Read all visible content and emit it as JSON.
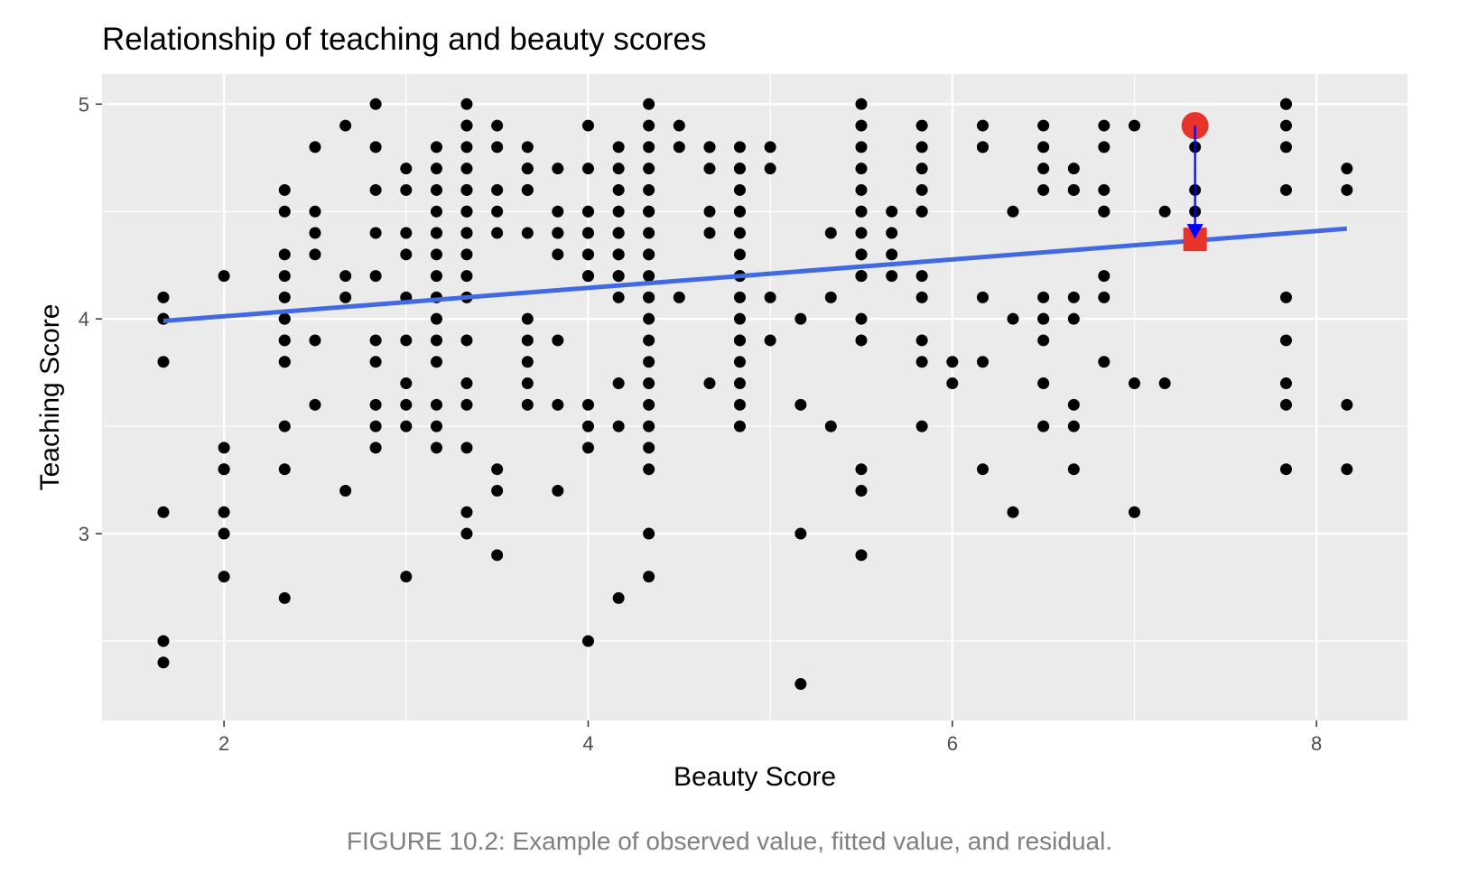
{
  "figure": {
    "caption": "FIGURE 10.2: Example of observed value, fitted value, and residual."
  },
  "chart_data": {
    "type": "scatter",
    "title": "Relationship of teaching and beauty scores",
    "xlabel": "Beauty Score",
    "ylabel": "Teaching Score",
    "xlim": [
      1.33,
      8.5
    ],
    "ylim": [
      2.13,
      5.14
    ],
    "x_ticks": [
      2,
      4,
      6,
      8
    ],
    "x_tick_labels": [
      "2",
      "4",
      "6",
      "8"
    ],
    "y_ticks": [
      3,
      4,
      5
    ],
    "y_tick_labels": [
      "3",
      "4",
      "5"
    ],
    "grid": true,
    "legend": "none",
    "colors": {
      "panel_background": "#ebebeb",
      "grid": "#ffffff",
      "points": "#000000",
      "fit_line": "#4169e1",
      "observed": "#e8332a",
      "fitted": "#e8332a",
      "residual_arrow": "#0000ff"
    },
    "regression_line": {
      "x": [
        1.667,
        8.167
      ],
      "y": [
        3.99,
        4.42
      ]
    },
    "highlight": {
      "x": 7.333,
      "observed_y": 4.9,
      "fitted_y": 4.37
    },
    "points": {
      "x": [
        1.667,
        1.667,
        1.667,
        1.667,
        1.667,
        1.667,
        1.667,
        2.0,
        2.0,
        2.0,
        2.0,
        2.0,
        2.0,
        2.0,
        2.333,
        2.333,
        2.333,
        2.333,
        2.333,
        2.333,
        2.333,
        2.333,
        2.333,
        2.333,
        2.333,
        2.333,
        2.333,
        2.333,
        2.5,
        2.5,
        2.5,
        2.5,
        2.5,
        2.5,
        2.667,
        2.667,
        2.667,
        2.667,
        2.833,
        2.833,
        2.833,
        2.833,
        2.833,
        2.833,
        2.833,
        2.833,
        2.833,
        2.833,
        3.0,
        3.0,
        3.0,
        3.0,
        3.0,
        3.0,
        3.0,
        3.0,
        3.0,
        3.0,
        3.167,
        3.167,
        3.167,
        3.167,
        3.167,
        3.167,
        3.167,
        3.167,
        3.167,
        3.167,
        3.167,
        3.167,
        3.167,
        3.167,
        3.167,
        3.333,
        3.333,
        3.333,
        3.333,
        3.333,
        3.333,
        3.333,
        3.333,
        3.333,
        3.333,
        3.333,
        3.333,
        3.333,
        3.333,
        3.333,
        3.333,
        3.333,
        3.333,
        3.333,
        3.333,
        3.5,
        3.5,
        3.5,
        3.5,
        3.5,
        3.5,
        3.5,
        3.5,
        3.667,
        3.667,
        3.667,
        3.667,
        3.667,
        3.667,
        3.667,
        3.667,
        3.667,
        3.667,
        3.667,
        3.833,
        3.833,
        3.833,
        3.833,
        3.833,
        3.833,
        3.833,
        3.833,
        4.0,
        4.0,
        4.0,
        4.0,
        4.0,
        4.0,
        4.0,
        4.0,
        4.0,
        4.0,
        4.0,
        4.0,
        4.0,
        4.0,
        4.167,
        4.167,
        4.167,
        4.167,
        4.167,
        4.167,
        4.167,
        4.167,
        4.167,
        4.167,
        4.167,
        4.167,
        4.167,
        4.167,
        4.333,
        4.333,
        4.333,
        4.333,
        4.333,
        4.333,
        4.333,
        4.333,
        4.333,
        4.333,
        4.333,
        4.333,
        4.333,
        4.333,
        4.333,
        4.333,
        4.333,
        4.333,
        4.333,
        4.333,
        4.333,
        4.333,
        4.333,
        4.5,
        4.5,
        4.5,
        4.667,
        4.667,
        4.667,
        4.667,
        4.667,
        4.667,
        4.833,
        4.833,
        4.833,
        4.833,
        4.833,
        4.833,
        4.833,
        4.833,
        4.833,
        4.833,
        4.833,
        4.833,
        4.833,
        4.833,
        4.833,
        4.833,
        4.833,
        4.833,
        5.0,
        5.0,
        5.0,
        5.0,
        5.167,
        5.167,
        5.167,
        5.167,
        5.333,
        5.333,
        5.333,
        5.5,
        5.5,
        5.5,
        5.5,
        5.5,
        5.5,
        5.5,
        5.5,
        5.5,
        5.5,
        5.5,
        5.5,
        5.5,
        5.5,
        5.5,
        5.5,
        5.5,
        5.667,
        5.667,
        5.667,
        5.667,
        5.833,
        5.833,
        5.833,
        5.833,
        5.833,
        5.833,
        5.833,
        5.833,
        5.833,
        5.833,
        5.833,
        6.0,
        6.0,
        6.167,
        6.167,
        6.167,
        6.167,
        6.167,
        6.167,
        6.333,
        6.333,
        6.333,
        6.5,
        6.5,
        6.5,
        6.5,
        6.5,
        6.5,
        6.5,
        6.5,
        6.5,
        6.5,
        6.667,
        6.667,
        6.667,
        6.667,
        6.667,
        6.667,
        6.667,
        6.667,
        6.833,
        6.833,
        6.833,
        6.833,
        6.833,
        6.833,
        6.833,
        6.833,
        7.0,
        7.0,
        7.0,
        7.167,
        7.167,
        7.333,
        7.333,
        7.333,
        7.333,
        7.833,
        7.833,
        7.833,
        7.833,
        7.833,
        7.833,
        7.833,
        7.833,
        7.833,
        7.833,
        8.167,
        8.167,
        8.167,
        8.167
      ],
      "y": [
        4.1,
        4.0,
        3.8,
        3.1,
        2.5,
        2.4,
        4.0,
        4.2,
        3.4,
        3.3,
        3.1,
        3.0,
        2.8,
        3.3,
        4.6,
        4.5,
        4.3,
        4.2,
        4.1,
        4.0,
        3.9,
        3.8,
        3.5,
        3.3,
        2.7,
        4.0,
        3.9,
        3.8,
        4.8,
        4.5,
        4.4,
        4.3,
        3.9,
        3.6,
        4.9,
        4.2,
        4.1,
        3.2,
        5.0,
        4.8,
        4.6,
        4.4,
        4.2,
        3.9,
        3.8,
        3.6,
        3.5,
        3.4,
        4.7,
        4.6,
        4.4,
        4.3,
        4.1,
        3.9,
        3.7,
        3.6,
        3.5,
        2.8,
        4.8,
        4.7,
        4.6,
        4.5,
        4.4,
        4.3,
        4.2,
        4.1,
        4.0,
        3.9,
        3.8,
        3.6,
        3.5,
        3.4,
        4.4,
        5.0,
        4.9,
        4.8,
        4.7,
        4.6,
        4.5,
        4.4,
        4.3,
        4.2,
        4.1,
        3.9,
        3.7,
        3.6,
        3.4,
        3.1,
        3.0,
        4.9,
        4.6,
        4.5,
        4.4,
        4.9,
        4.8,
        4.6,
        4.5,
        4.4,
        3.3,
        3.2,
        2.9,
        4.8,
        4.7,
        4.6,
        4.4,
        4.0,
        3.9,
        3.8,
        3.7,
        3.6,
        4.7,
        4.6,
        4.7,
        4.5,
        4.4,
        4.3,
        3.9,
        3.6,
        3.2,
        4.4,
        4.9,
        4.7,
        4.5,
        4.4,
        4.3,
        4.2,
        3.6,
        3.5,
        3.4,
        2.5,
        4.5,
        4.4,
        4.3,
        4.2,
        4.8,
        4.7,
        4.6,
        4.5,
        4.4,
        4.3,
        4.2,
        4.1,
        3.7,
        3.5,
        2.7,
        4.4,
        4.3,
        4.2,
        5.0,
        4.9,
        4.8,
        4.7,
        4.6,
        4.5,
        4.4,
        4.3,
        4.2,
        4.1,
        4.0,
        3.9,
        3.8,
        3.7,
        3.6,
        3.5,
        3.4,
        3.3,
        3.0,
        2.8,
        4.5,
        4.3,
        4.1,
        4.9,
        4.8,
        4.1,
        4.8,
        4.7,
        4.5,
        4.4,
        3.7,
        4.8,
        4.8,
        4.7,
        4.6,
        4.5,
        4.4,
        4.3,
        4.2,
        4.1,
        4.0,
        3.9,
        3.8,
        3.7,
        3.6,
        3.5,
        4.7,
        4.5,
        4.2,
        3.9,
        4.8,
        4.7,
        4.1,
        3.9,
        4.0,
        3.6,
        3.0,
        2.3,
        4.4,
        4.1,
        3.5,
        5.0,
        4.9,
        4.8,
        4.7,
        4.6,
        4.5,
        4.4,
        4.3,
        4.2,
        4.0,
        3.9,
        3.3,
        3.2,
        2.9,
        4.5,
        4.3,
        4.2,
        4.5,
        4.4,
        4.3,
        4.2,
        4.9,
        4.8,
        4.7,
        4.6,
        4.5,
        4.2,
        4.1,
        3.9,
        3.8,
        3.5,
        4.5,
        3.8,
        3.7,
        4.9,
        4.8,
        4.1,
        3.8,
        3.3,
        4.8,
        4.5,
        4.0,
        3.1,
        4.9,
        4.8,
        4.7,
        4.6,
        4.1,
        4.0,
        3.9,
        3.7,
        3.5,
        4.0,
        4.7,
        4.6,
        4.1,
        4.0,
        3.6,
        3.5,
        3.3,
        4.6,
        4.9,
        4.8,
        4.6,
        4.5,
        4.2,
        4.1,
        3.8,
        4.5,
        4.9,
        3.7,
        3.1,
        4.5,
        3.7,
        4.8,
        4.6,
        4.5,
        4.9,
        5.0,
        4.9,
        4.8,
        4.6,
        4.1,
        3.9,
        3.7,
        3.6,
        3.3,
        5.0,
        4.7,
        4.6,
        3.6,
        3.3
      ]
    }
  }
}
